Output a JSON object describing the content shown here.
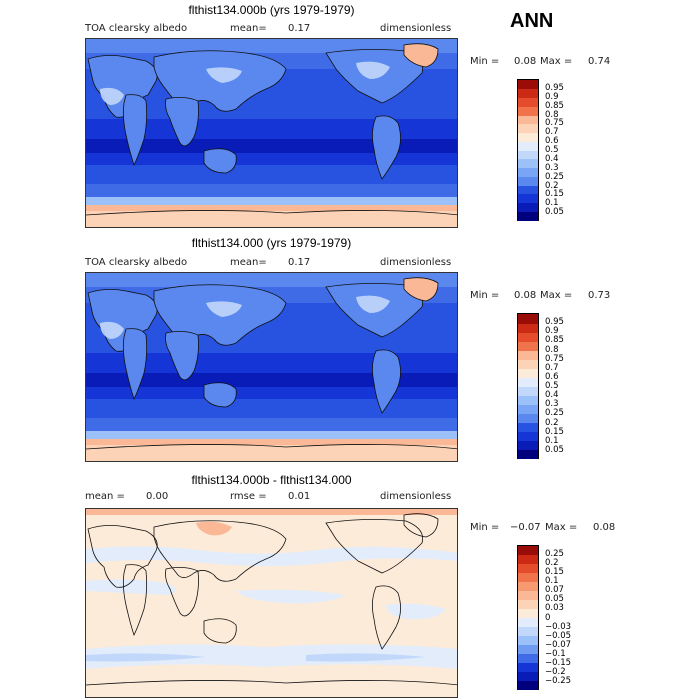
{
  "season": "ANN",
  "colors": {
    "abs": [
      "#00007f",
      "#0a1cb8",
      "#1535d6",
      "#2852e0",
      "#3f6ce6",
      "#5a88ee",
      "#7aa5f4",
      "#9cc0f8",
      "#c2d8fa",
      "#e2ecfb",
      "#fdebd9",
      "#fdd3b8",
      "#fbb896",
      "#f79a72",
      "#f0734c",
      "#e54c2b",
      "#cc2a15",
      "#9a0d07"
    ],
    "diff": [
      "#00007f",
      "#0a1cb8",
      "#1535d6",
      "#3f6ce6",
      "#6f9bf0",
      "#9cc0f8",
      "#c2d8fa",
      "#e2ecfb",
      "#fdebd9",
      "#fdd3b8",
      "#fbb896",
      "#f79a72",
      "#f0734c",
      "#e54c2b",
      "#cc2a15",
      "#9a0d07"
    ]
  },
  "panels": [
    {
      "title": "flthist134.000b (yrs 1979-1979)",
      "variable": "TOA clearsky albedo",
      "stat1_label": "mean=",
      "stat1_value": "0.17",
      "units": "dimensionless",
      "min_label": "Min =",
      "min_value": "0.08",
      "max_label": "Max =",
      "max_value": "0.74",
      "levels": [
        "0.05",
        "0.1",
        "0.15",
        "0.2",
        "0.25",
        "0.3",
        "0.4",
        "0.5",
        "0.6",
        "0.7",
        "0.75",
        "0.8",
        "0.85",
        "0.9",
        "0.95"
      ]
    },
    {
      "title": "flthist134.000 (yrs 1979-1979)",
      "variable": "TOA clearsky albedo",
      "stat1_label": "mean=",
      "stat1_value": "0.17",
      "units": "dimensionless",
      "min_label": "Min =",
      "min_value": "0.08",
      "max_label": "Max =",
      "max_value": "0.73",
      "levels": [
        "0.05",
        "0.1",
        "0.15",
        "0.2",
        "0.25",
        "0.3",
        "0.4",
        "0.5",
        "0.6",
        "0.7",
        "0.75",
        "0.8",
        "0.85",
        "0.9",
        "0.95"
      ]
    },
    {
      "title": "flthist134.000b - flthist134.000",
      "variable": "",
      "stat1_label": "mean =",
      "stat1_value": "0.00",
      "stat2_label": "rmse =",
      "stat2_value": "0.01",
      "units": "dimensionless",
      "min_label": "Min =",
      "min_value": "−0.07",
      "max_label": "Max =",
      "max_value": "0.08",
      "levels": [
        "−0.25",
        "−0.2",
        "−0.15",
        "−0.1",
        "−0.07",
        "−0.05",
        "−0.03",
        "0",
        "0.03",
        "0.05",
        "0.07",
        "0.1",
        "0.15",
        "0.2",
        "0.25"
      ]
    }
  ],
  "chart_data": [
    {
      "type": "heatmap",
      "title": "flthist134.000b (yrs 1979-1979)",
      "variable": "TOA clearsky albedo",
      "units": "dimensionless",
      "mean": 0.17,
      "min": 0.08,
      "max": 0.74,
      "contour_levels": [
        0.05,
        0.1,
        0.15,
        0.2,
        0.25,
        0.3,
        0.4,
        0.5,
        0.6,
        0.7,
        0.75,
        0.8,
        0.85,
        0.9,
        0.95
      ]
    },
    {
      "type": "heatmap",
      "title": "flthist134.000 (yrs 1979-1979)",
      "variable": "TOA clearsky albedo",
      "units": "dimensionless",
      "mean": 0.17,
      "min": 0.08,
      "max": 0.73,
      "contour_levels": [
        0.05,
        0.1,
        0.15,
        0.2,
        0.25,
        0.3,
        0.4,
        0.5,
        0.6,
        0.7,
        0.75,
        0.8,
        0.85,
        0.9,
        0.95
      ]
    },
    {
      "type": "heatmap",
      "title": "flthist134.000b - flthist134.000",
      "units": "dimensionless",
      "mean": 0.0,
      "rmse": 0.01,
      "min": -0.07,
      "max": 0.08,
      "contour_levels": [
        -0.25,
        -0.2,
        -0.15,
        -0.1,
        -0.07,
        -0.05,
        -0.03,
        0,
        0.03,
        0.05,
        0.07,
        0.1,
        0.15,
        0.2,
        0.25
      ]
    }
  ]
}
